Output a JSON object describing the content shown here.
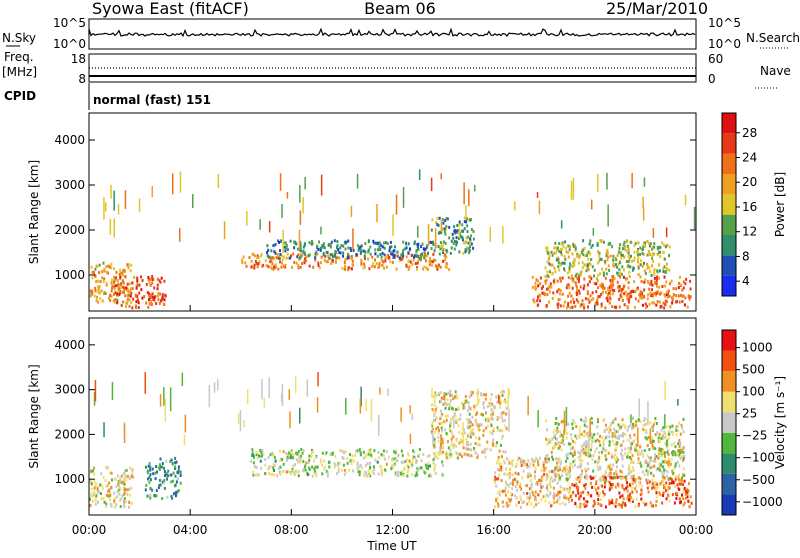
{
  "header": {
    "title": "Syowa East (fitACF)",
    "beam": "Beam 06",
    "date": "25/Mar/2010"
  },
  "panels": {
    "nsky_label": "N.Sky",
    "nsky_ticks": [
      "10^5",
      "10^0"
    ],
    "nsearch_label": "N.Search",
    "nsearch_ticks": [
      "10^5",
      "10^0"
    ],
    "freq_label": "Freq.",
    "freq_unit": "[MHz]",
    "freq_ticks": [
      "18",
      "8"
    ],
    "nave_label": "Nave",
    "nave_ticks": [
      "60",
      "0"
    ],
    "cpid_label": "CPID",
    "cpid_value": "normal (fast) 151"
  },
  "colors": {
    "power_scale": [
      "#1a2cf0",
      "#1f4fb5",
      "#2f8f6a",
      "#55a04a",
      "#e0c62a",
      "#f0a020",
      "#f07018",
      "#e83818",
      "#e01010"
    ],
    "velocity_scale": [
      "#1a3ab8",
      "#2a64a6",
      "#2c8c6c",
      "#4fb83a",
      "#c8c8c8",
      "#f0e070",
      "#f09020",
      "#f05010",
      "#e81010"
    ]
  },
  "chart_data": [
    {
      "type": "heatmap",
      "title": "",
      "xlabel": "Time UT",
      "ylabel": "Slant Range [km]",
      "x_ticks": [
        "00:00",
        "04:00",
        "08:00",
        "12:00",
        "16:00",
        "20:00",
        "00:00"
      ],
      "y_ticks": [
        "1000",
        "2000",
        "3000",
        "4000"
      ],
      "xlim": [
        0,
        24
      ],
      "ylim": [
        200,
        4600
      ],
      "colorbar": {
        "label": "Power [dB]",
        "ticks": [
          "28",
          "24",
          "20",
          "16",
          "12",
          "8",
          "4"
        ],
        "range": [
          0,
          30
        ]
      },
      "regions": [
        {
          "t": [
            0.0,
            1.7
          ],
          "r": [
            400,
            1300
          ],
          "value": 18
        },
        {
          "t": [
            1.0,
            3.0
          ],
          "r": [
            300,
            1000
          ],
          "value": 24
        },
        {
          "t": [
            6.0,
            14.2
          ],
          "r": [
            1150,
            1500
          ],
          "value": 20
        },
        {
          "t": [
            7.0,
            13.5
          ],
          "r": [
            1400,
            1800
          ],
          "value": 8
        },
        {
          "t": [
            13.5,
            15.2
          ],
          "r": [
            1500,
            2300
          ],
          "value": 10
        },
        {
          "t": [
            17.5,
            23.8
          ],
          "r": [
            300,
            1000
          ],
          "value": 22
        },
        {
          "t": [
            18.0,
            23.0
          ],
          "r": [
            1000,
            1800
          ],
          "value": 14
        }
      ]
    },
    {
      "type": "heatmap",
      "title": "",
      "xlabel": "Time UT",
      "ylabel": "Slant Range [km]",
      "x_ticks": [
        "00:00",
        "04:00",
        "08:00",
        "12:00",
        "16:00",
        "20:00",
        "00:00"
      ],
      "y_ticks": [
        "1000",
        "2000",
        "3000",
        "4000"
      ],
      "xlim": [
        0,
        24
      ],
      "ylim": [
        200,
        4600
      ],
      "colorbar": {
        "label": "Velocity [m s⁻¹]",
        "ticks": [
          "1000",
          "500",
          "100",
          "25",
          "−25",
          "−100",
          "−500",
          "−1000"
        ],
        "range": [
          -1200,
          1200
        ]
      },
      "regions": [
        {
          "t": [
            0.0,
            1.7
          ],
          "r": [
            400,
            1300
          ],
          "value": 200
        },
        {
          "t": [
            2.2,
            3.6
          ],
          "r": [
            600,
            1500
          ],
          "value": -500
        },
        {
          "t": [
            6.3,
            14.0
          ],
          "r": [
            1100,
            1700
          ],
          "value": 0
        },
        {
          "t": [
            13.5,
            16.5
          ],
          "r": [
            1500,
            3000
          ],
          "value": 200
        },
        {
          "t": [
            16.0,
            19.0
          ],
          "r": [
            400,
            1500
          ],
          "value": 300
        },
        {
          "t": [
            19.0,
            23.8
          ],
          "r": [
            400,
            1100
          ],
          "value": 700
        },
        {
          "t": [
            18.0,
            23.5
          ],
          "r": [
            1000,
            2400
          ],
          "value": 150
        }
      ]
    }
  ]
}
